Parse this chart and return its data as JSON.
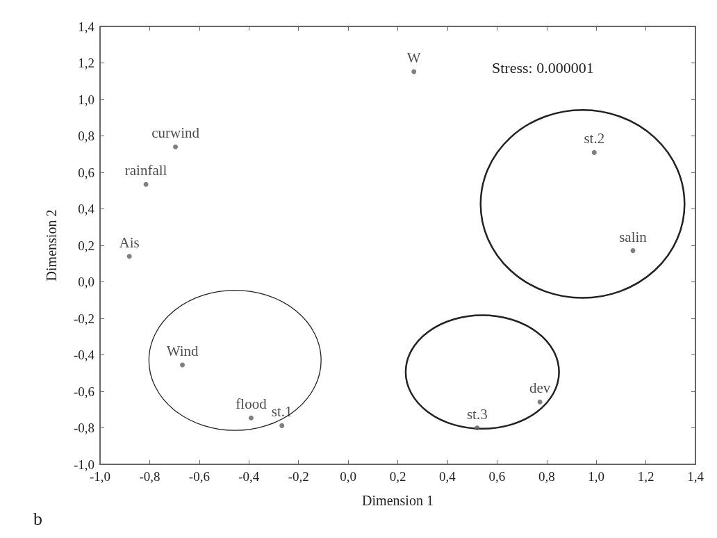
{
  "chart_data": {
    "type": "scatter",
    "xlabel": "Dimension 1",
    "ylabel": "Dimension 2",
    "annotations": [
      "Stress: 0.000001",
      "b"
    ],
    "x": [
      0.265,
      -0.696,
      -0.815,
      -0.882,
      -0.668,
      -0.391,
      -0.267,
      0.992,
      1.148,
      0.773,
      0.52
    ],
    "values": [
      1.152,
      0.74,
      0.534,
      0.14,
      -0.455,
      -0.746,
      -0.788,
      0.709,
      0.171,
      -0.658,
      -0.8
    ],
    "value_labels": [
      "W",
      "curwind",
      "rainfall",
      "Ais",
      "Wind",
      "flood",
      "st.1",
      "st.2",
      "salin",
      "dev",
      "st.3"
    ],
    "color": "#606060",
    "marker": "circle",
    "grid": false,
    "xlim": [
      -1.0,
      1.4
    ],
    "xticks": [
      {
        "value": -1.0,
        "label": "-1,0"
      },
      {
        "value": -0.8,
        "label": "-0,8"
      },
      {
        "value": -0.6,
        "label": "-0,6"
      },
      {
        "value": -0.4,
        "label": "-0,4"
      },
      {
        "value": -0.2,
        "label": "-0,2"
      },
      {
        "value": 0.0,
        "label": "0,0"
      },
      {
        "value": 0.2,
        "label": "0,2"
      },
      {
        "value": 0.4,
        "label": "0,4"
      },
      {
        "value": 0.6,
        "label": "0,6"
      },
      {
        "value": 0.8,
        "label": "0,8"
      },
      {
        "value": 1.0,
        "label": "1,0"
      },
      {
        "value": 1.2,
        "label": "1,2"
      },
      {
        "value": 1.4,
        "label": "1,4"
      }
    ],
    "ylim": [
      -1.0,
      1.4
    ],
    "yticks": [
      {
        "value": -1.0,
        "label": "-1,0"
      },
      {
        "value": -0.8,
        "label": "-0,8"
      },
      {
        "value": -0.6,
        "label": "-0,6"
      },
      {
        "value": -0.4,
        "label": "-0,4"
      },
      {
        "value": -0.2,
        "label": "-0,2"
      },
      {
        "value": 0.0,
        "label": "0,0"
      },
      {
        "value": 0.2,
        "label": "0,2"
      },
      {
        "value": 0.4,
        "label": "0,4"
      },
      {
        "value": 0.6,
        "label": "0,6"
      },
      {
        "value": 0.8,
        "label": "0,8"
      },
      {
        "value": 1.0,
        "label": "1,0"
      },
      {
        "value": 1.2,
        "label": "1,2"
      },
      {
        "value": 1.4,
        "label": "1,4"
      }
    ]
  }
}
